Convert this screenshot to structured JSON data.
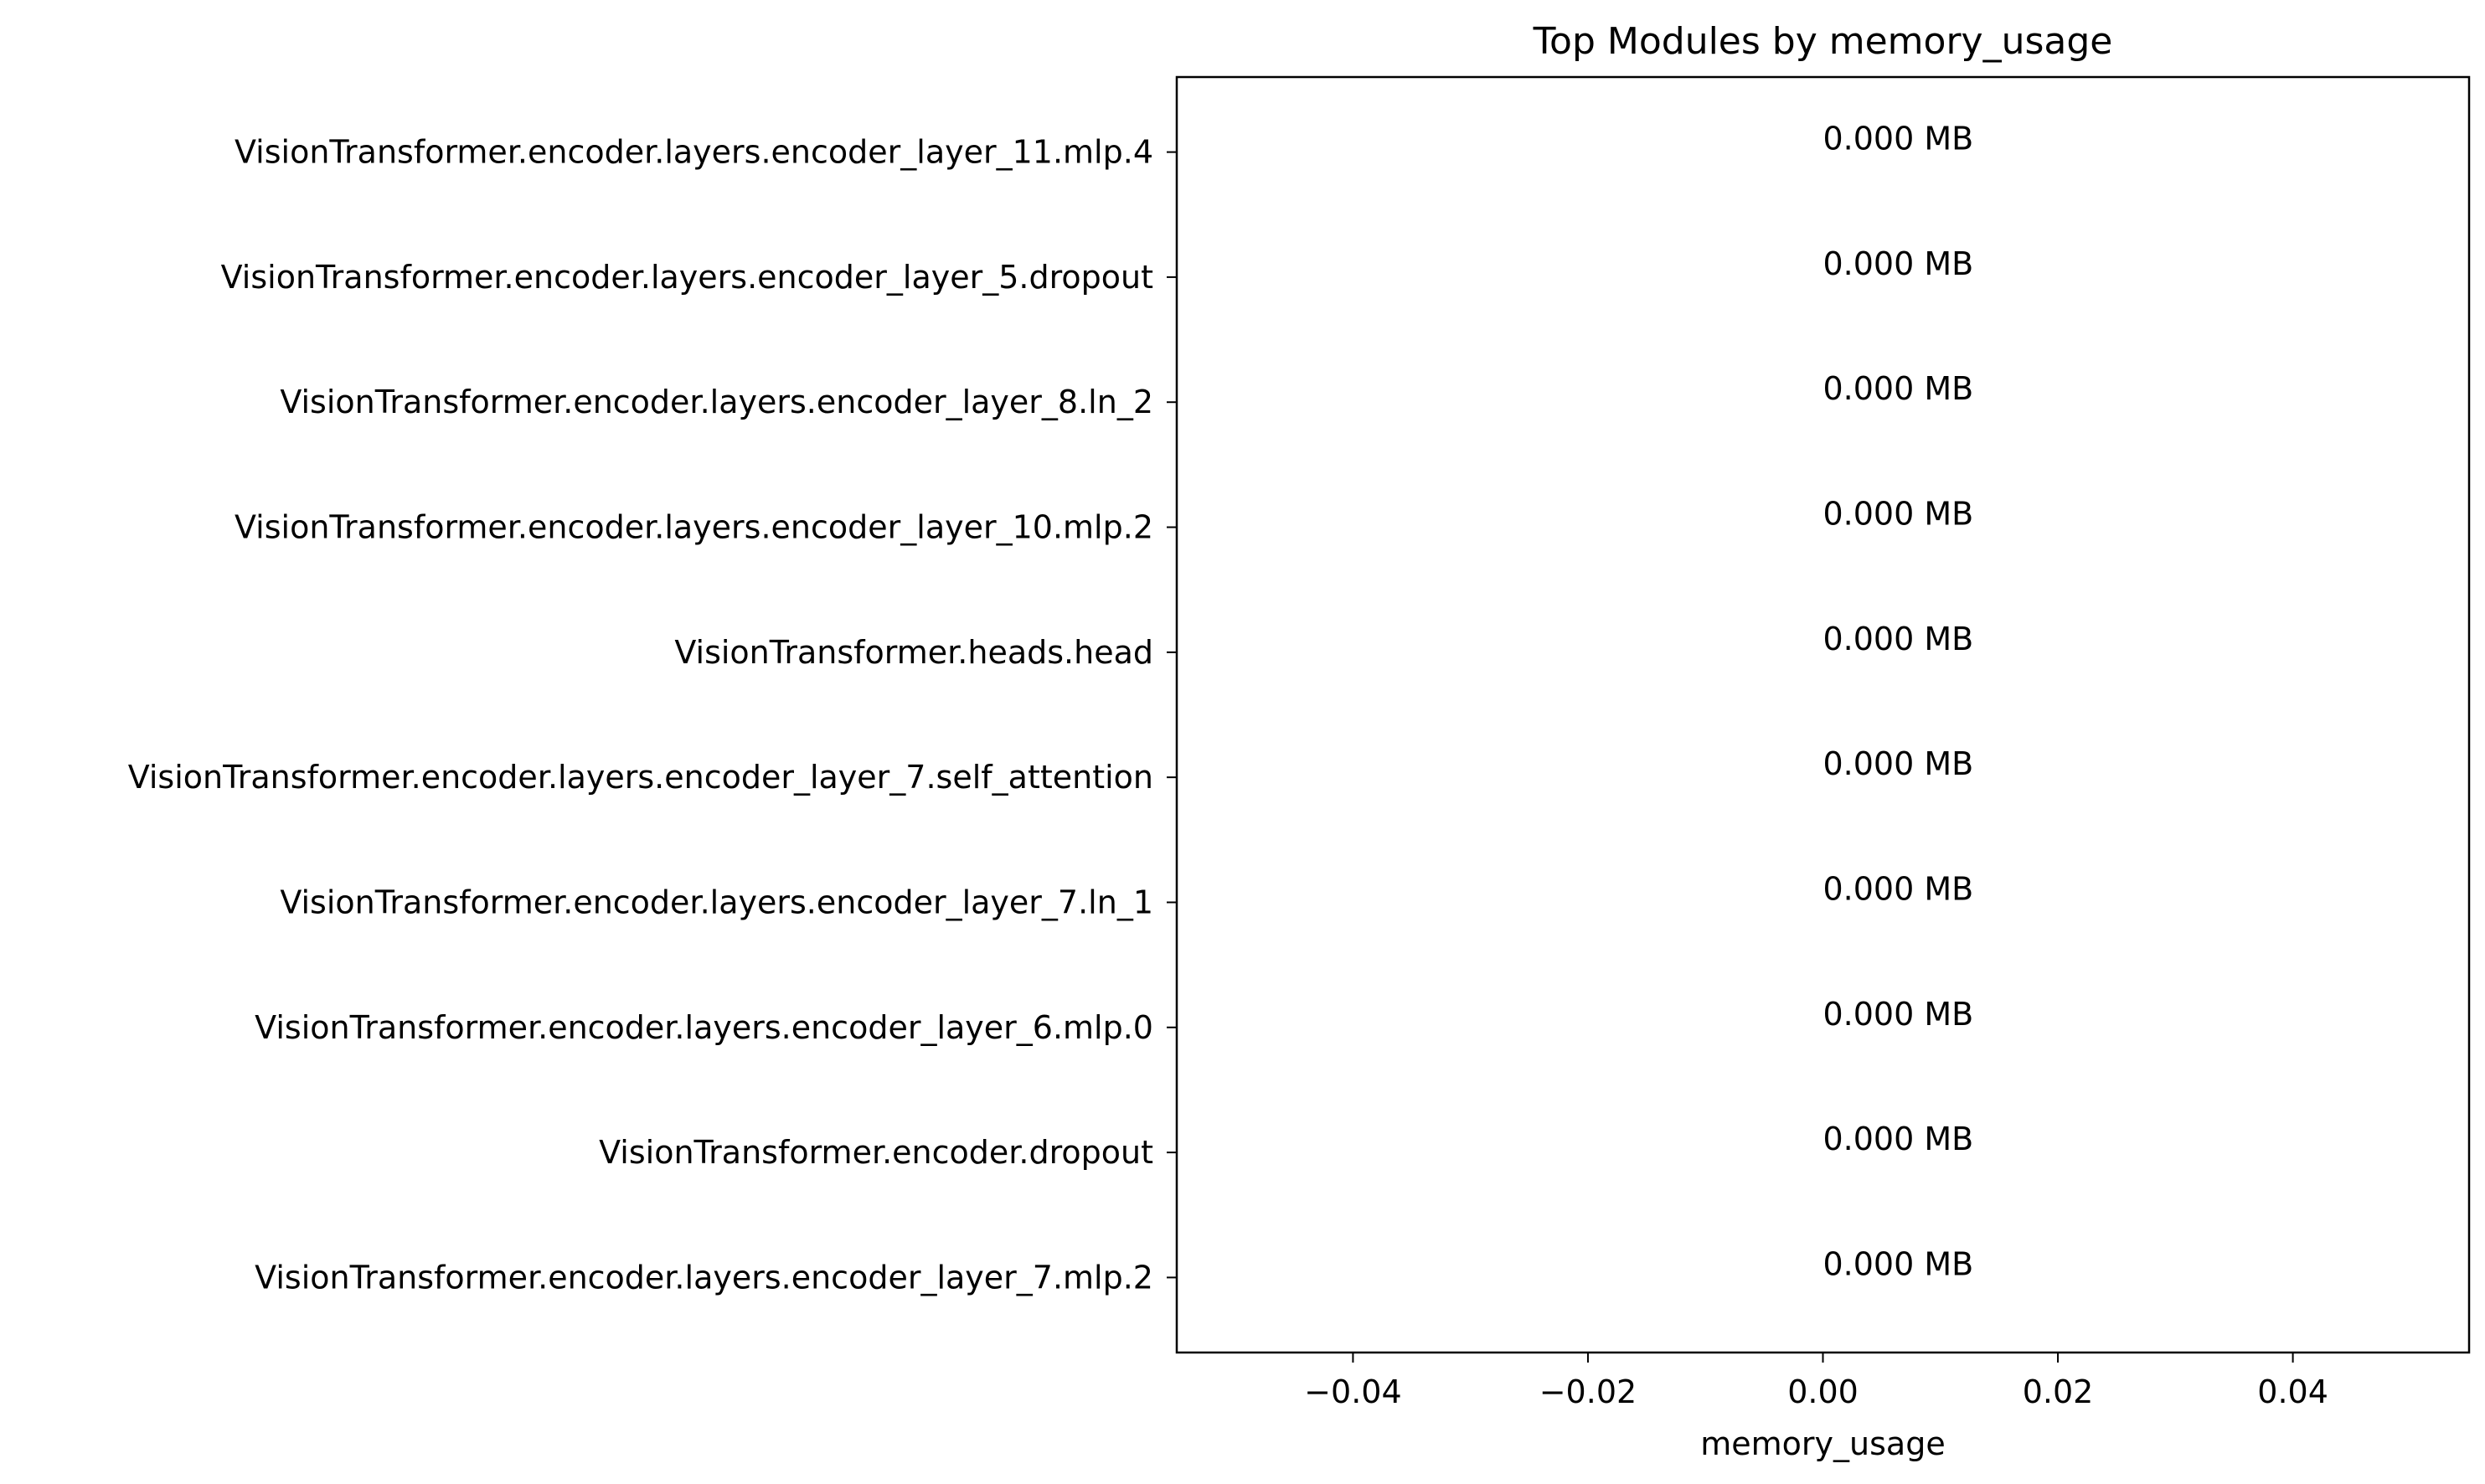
{
  "chart_data": {
    "type": "bar",
    "orientation": "horizontal",
    "title": "Top Modules by memory_usage",
    "xlabel": "memory_usage",
    "ylabel": "",
    "categories": [
      "VisionTransformer.encoder.layers.encoder_layer_11.mlp.4",
      "VisionTransformer.encoder.layers.encoder_layer_5.dropout",
      "VisionTransformer.encoder.layers.encoder_layer_8.ln_2",
      "VisionTransformer.encoder.layers.encoder_layer_10.mlp.2",
      "VisionTransformer.heads.head",
      "VisionTransformer.encoder.layers.encoder_layer_7.self_attention",
      "VisionTransformer.encoder.layers.encoder_layer_7.ln_1",
      "VisionTransformer.encoder.layers.encoder_layer_6.mlp.0",
      "VisionTransformer.encoder.dropout",
      "VisionTransformer.encoder.layers.encoder_layer_7.mlp.2"
    ],
    "values": [
      0,
      0,
      0,
      0,
      0,
      0,
      0,
      0,
      0,
      0
    ],
    "bar_labels": [
      "0.000 MB",
      "0.000 MB",
      "0.000 MB",
      "0.000 MB",
      "0.000 MB",
      "0.000 MB",
      "0.000 MB",
      "0.000 MB",
      "0.000 MB",
      "0.000 MB"
    ],
    "xlim": [
      -0.055,
      0.055
    ],
    "xticks": [
      -0.04,
      -0.02,
      0.0,
      0.02,
      0.04
    ],
    "xtick_labels": [
      "−0.04",
      "−0.02",
      "0.00",
      "0.02",
      "0.04"
    ],
    "grid": false,
    "legend": "none",
    "colors": {
      "bar": "#1f77b4",
      "axes": "#000000",
      "text": "#000000",
      "background": "#ffffff"
    }
  }
}
